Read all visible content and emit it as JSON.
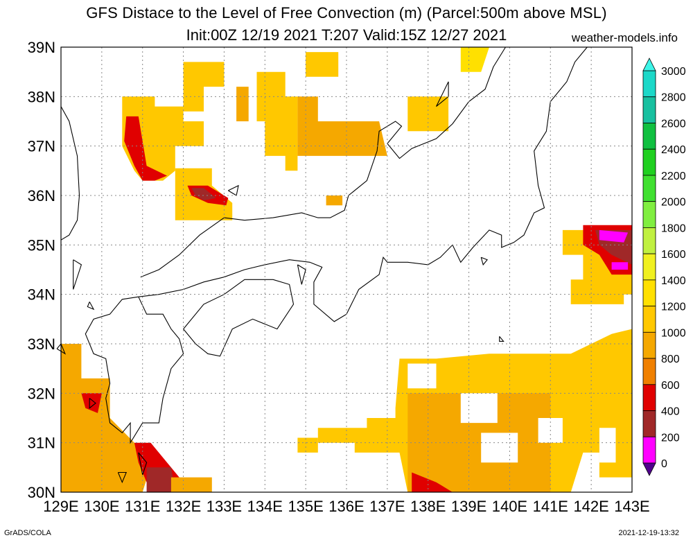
{
  "header": {
    "title_line1": "GFS Distace to the Level of Free Convection (m) (Parcel:500m above MSL)",
    "title_line2": "Init:00Z 12/19 2021 T:207 Valid:15Z 12/27 2021",
    "site": "weather-models.info"
  },
  "footer": {
    "left": "GrADS/COLA",
    "right": "2021-12-19-13:32"
  },
  "map": {
    "lat_labels": [
      "39N",
      "38N",
      "37N",
      "36N",
      "35N",
      "34N",
      "33N",
      "32N",
      "31N",
      "30N"
    ],
    "lon_labels": [
      "129E",
      "130E",
      "131E",
      "132E",
      "133E",
      "134E",
      "135E",
      "136E",
      "137E",
      "138E",
      "139E",
      "140E",
      "141E",
      "142E",
      "143E"
    ],
    "lat_range": [
      30,
      39
    ],
    "lon_range": [
      129,
      143
    ],
    "grid": "dotted"
  },
  "colorbar": {
    "labels": [
      "3000",
      "2800",
      "2600",
      "2400",
      "2200",
      "2000",
      "1800",
      "1600",
      "1400",
      "1200",
      "1000",
      "800",
      "600",
      "400",
      "200",
      "0"
    ],
    "colors": [
      "#3df5e8",
      "#1cd8c8",
      "#18c0a0",
      "#10c040",
      "#20d020",
      "#40e030",
      "#80ee40",
      "#c0f040",
      "#f0f020",
      "#ffe000",
      "#ffc800",
      "#f5a800",
      "#f08000",
      "#e00000",
      "#a02828",
      "#ff00ff",
      "#50008c"
    ],
    "top_arrow_color": "#3df5e8",
    "bottom_arrow_color": "#50008c"
  }
}
